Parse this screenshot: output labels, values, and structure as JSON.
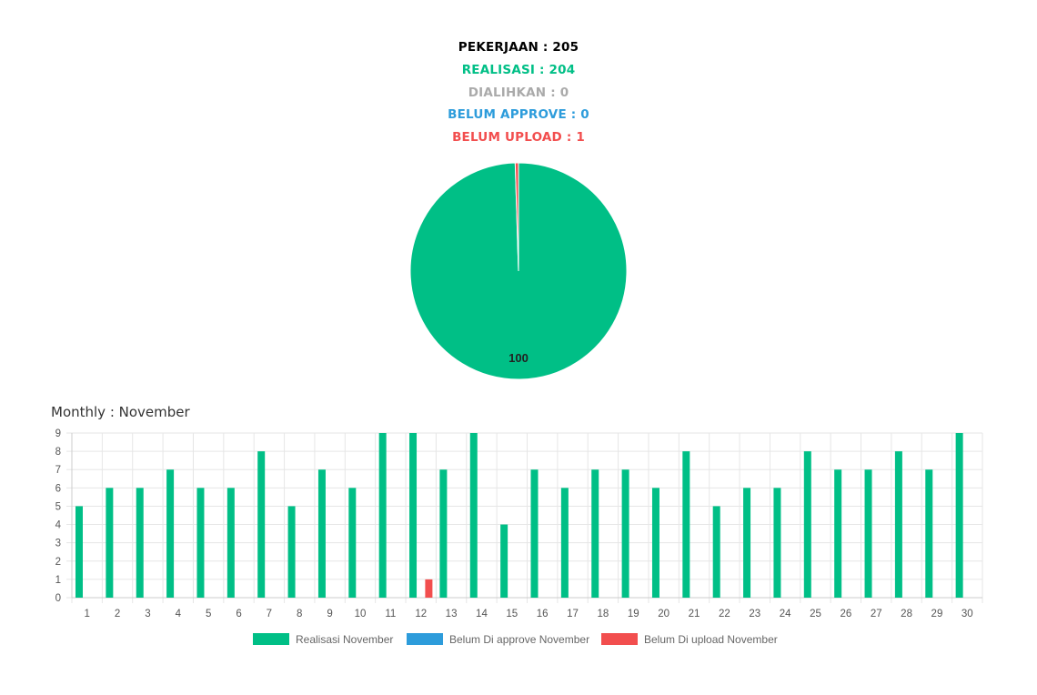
{
  "summary": {
    "pekerjaan": "PEKERJAAN : 205",
    "realisasi": "REALISASI : 204",
    "dialihkan": "DIALIHKAN : 0",
    "belum_approve": "BELUM APPROVE : 0",
    "belum_upload": "BELUM UPLOAD : 1"
  },
  "colors": {
    "pekerjaan": "#000000",
    "realisasi": "#00bf86",
    "dialihkan": "#aaaaaa",
    "belum_approve": "#2d9cdb",
    "belum_upload": "#f24e4e"
  },
  "monthly": {
    "title": "Monthly : November"
  },
  "chart_data": [
    {
      "type": "pie",
      "slices": [
        {
          "value": 204,
          "color": "#00bf86"
        },
        {
          "value": 1,
          "color": "#f24e4e"
        }
      ],
      "data_label": "100"
    },
    {
      "type": "bar",
      "categories": [
        "1",
        "2",
        "3",
        "4",
        "5",
        "6",
        "7",
        "8",
        "9",
        "10",
        "11",
        "12",
        "13",
        "14",
        "15",
        "16",
        "17",
        "18",
        "19",
        "20",
        "21",
        "22",
        "23",
        "24",
        "25",
        "26",
        "27",
        "28",
        "29",
        "30"
      ],
      "series": [
        {
          "name": "Realisasi November",
          "color": "#00bf86",
          "values": [
            5,
            6,
            6,
            7,
            6,
            6,
            8,
            5,
            7,
            6,
            9,
            9,
            7,
            9,
            4,
            7,
            6,
            7,
            7,
            6,
            8,
            5,
            6,
            6,
            8,
            7,
            7,
            8,
            7,
            9
          ]
        },
        {
          "name": "Belum Di approve November",
          "color": "#2d9cdb",
          "values": [
            0,
            0,
            0,
            0,
            0,
            0,
            0,
            0,
            0,
            0,
            0,
            0,
            0,
            0,
            0,
            0,
            0,
            0,
            0,
            0,
            0,
            0,
            0,
            0,
            0,
            0,
            0,
            0,
            0,
            0
          ]
        },
        {
          "name": "Belum Di upload November",
          "color": "#f24e4e",
          "values": [
            0,
            0,
            0,
            0,
            0,
            0,
            0,
            0,
            0,
            0,
            0,
            1,
            0,
            0,
            0,
            0,
            0,
            0,
            0,
            0,
            0,
            0,
            0,
            0,
            0,
            0,
            0,
            0,
            0,
            0
          ]
        }
      ],
      "ylim": [
        0,
        9
      ],
      "yticks": [
        "0",
        "1",
        "2",
        "3",
        "4",
        "5",
        "6",
        "7",
        "8",
        "9"
      ],
      "grid": true,
      "legend": "bottom"
    }
  ]
}
